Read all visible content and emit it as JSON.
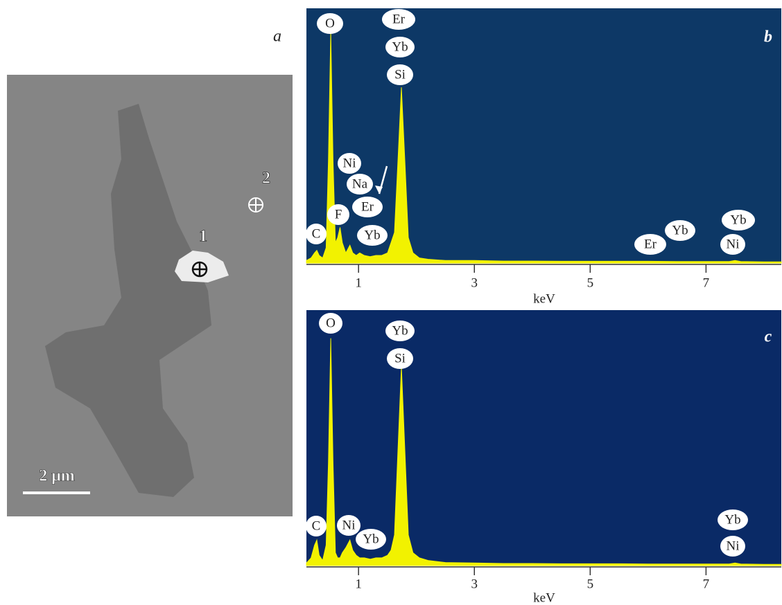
{
  "image": {
    "label": "a",
    "points": [
      "1",
      "2"
    ],
    "scale_bar": "2 μm"
  },
  "chart_data": [
    {
      "type": "area",
      "label": "b",
      "xlabel": "keV",
      "color": "#f2f200",
      "background": "#0d3866",
      "xlim": [
        0.1,
        8.3
      ],
      "ylim": [
        0,
        100
      ],
      "xticks": [
        1,
        3,
        5,
        7
      ],
      "x": [
        0.1,
        0.18,
        0.24,
        0.28,
        0.32,
        0.38,
        0.44,
        0.48,
        0.52,
        0.56,
        0.6,
        0.64,
        0.68,
        0.72,
        0.78,
        0.85,
        0.9,
        0.96,
        1.02,
        1.1,
        1.2,
        1.3,
        1.4,
        1.5,
        1.56,
        1.62,
        1.68,
        1.74,
        1.8,
        1.86,
        1.94,
        2.05,
        2.2,
        2.5,
        3,
        3.5,
        4,
        4.5,
        5,
        5.5,
        6,
        6.5,
        7,
        7.4,
        7.5,
        7.6,
        8,
        8.3
      ],
      "values": [
        1,
        2,
        4,
        5,
        3,
        2,
        6,
        40,
        91,
        40,
        8,
        10,
        14,
        8,
        4,
        7,
        4,
        3,
        4,
        3,
        2.5,
        3,
        3,
        4,
        8,
        12,
        40,
        69,
        40,
        10,
        4,
        2,
        1.5,
        1,
        1,
        0.8,
        0.8,
        0.7,
        0.7,
        0.7,
        0.7,
        0.6,
        0.6,
        0.6,
        1,
        0.6,
        0.5,
        0.5
      ],
      "annotations": [
        "O",
        "Er",
        "Yb",
        "Si",
        "Ni",
        "Na",
        "Er",
        "F",
        "C",
        "Yb",
        "Er",
        "Yb",
        "Yb",
        "Ni"
      ]
    },
    {
      "type": "area",
      "label": "c",
      "xlabel": "keV",
      "color": "#f2f200",
      "background": "#0a2a66",
      "xlim": [
        0.1,
        8.3
      ],
      "ylim": [
        0,
        100
      ],
      "xticks": [
        1,
        3,
        5,
        7
      ],
      "x": [
        0.1,
        0.18,
        0.24,
        0.28,
        0.32,
        0.38,
        0.44,
        0.48,
        0.52,
        0.56,
        0.6,
        0.64,
        0.68,
        0.72,
        0.78,
        0.85,
        0.9,
        0.96,
        1.02,
        1.1,
        1.2,
        1.3,
        1.4,
        1.5,
        1.56,
        1.62,
        1.68,
        1.74,
        1.8,
        1.86,
        1.94,
        2.05,
        2.2,
        2.5,
        3,
        3.5,
        4,
        4.5,
        5,
        5.5,
        6,
        6.5,
        7,
        7.4,
        7.5,
        7.6,
        8,
        8.3
      ],
      "values": [
        1,
        3,
        8,
        10,
        4,
        2,
        8,
        40,
        89,
        40,
        5,
        3,
        3,
        5,
        7,
        10,
        6,
        4,
        3,
        3,
        2.5,
        3,
        3,
        4,
        6,
        12,
        45,
        78,
        45,
        12,
        5,
        3,
        2,
        1.2,
        1,
        0.8,
        0.8,
        0.7,
        0.7,
        0.7,
        0.6,
        0.6,
        0.6,
        0.6,
        1,
        0.6,
        0.5,
        0.5
      ],
      "annotations": [
        "O",
        "Yb",
        "Si",
        "C",
        "Ni",
        "Yb",
        "Yb",
        "Ni"
      ]
    }
  ]
}
